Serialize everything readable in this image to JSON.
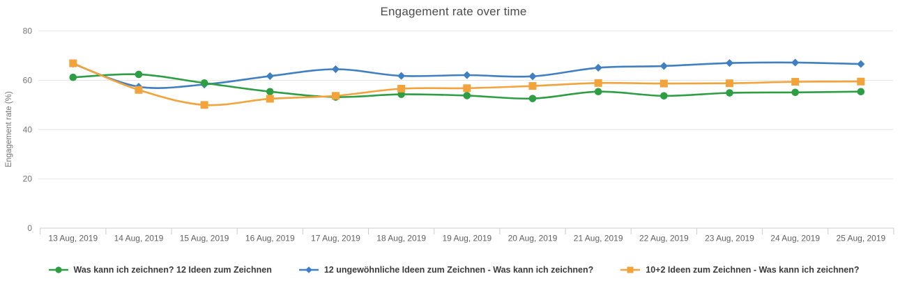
{
  "title": "Engagement rate over time",
  "chart_data": {
    "type": "line",
    "x": [
      "13 Aug, 2019",
      "14 Aug, 2019",
      "15 Aug, 2019",
      "16 Aug, 2019",
      "17 Aug, 2019",
      "18 Aug, 2019",
      "19 Aug, 2019",
      "20 Aug, 2019",
      "21 Aug, 2019",
      "22 Aug, 2019",
      "23 Aug, 2019",
      "24 Aug, 2019",
      "25 Aug, 2019"
    ],
    "series": [
      {
        "name": "Was kann ich zeichnen? 12 Ideen zum Zeichnen",
        "color": "#2e9e44",
        "marker": "circle",
        "values": [
          61.2,
          62.4,
          58.9,
          55.4,
          53.2,
          54.3,
          53.8,
          52.6,
          55.4,
          53.7,
          54.9,
          55.1,
          55.4
        ]
      },
      {
        "name": "12 ungewöhnliche Ideen zum Zeichnen - Was kann ich zeichnen?",
        "color": "#3f7fc2",
        "marker": "diamond",
        "values": [
          66.7,
          57.4,
          58.3,
          61.7,
          64.5,
          61.8,
          62.1,
          61.6,
          65.1,
          65.8,
          67.0,
          67.2,
          66.6
        ]
      },
      {
        "name": "10+2 Ideen zum Zeichnen - Was kann ich zeichnen?",
        "color": "#f2a33c",
        "marker": "square",
        "values": [
          66.9,
          56.1,
          50.0,
          52.5,
          53.7,
          56.6,
          56.8,
          57.7,
          58.9,
          58.7,
          58.8,
          59.4,
          59.5
        ]
      }
    ],
    "xlabel": "",
    "ylabel": "Engagement rate (%)",
    "yticks": [
      0,
      20,
      40,
      60,
      80
    ],
    "ylim": [
      0,
      80
    ],
    "grid": "horizontal",
    "legend_position": "bottom",
    "style": {
      "grid_color": "#e6e6e6",
      "axis_color": "#cccccc",
      "ytick_color": "#757575",
      "xtick_color": "#616161",
      "title_color": "#4b4b4b",
      "legend_text_color": "#3c3c3c"
    }
  }
}
